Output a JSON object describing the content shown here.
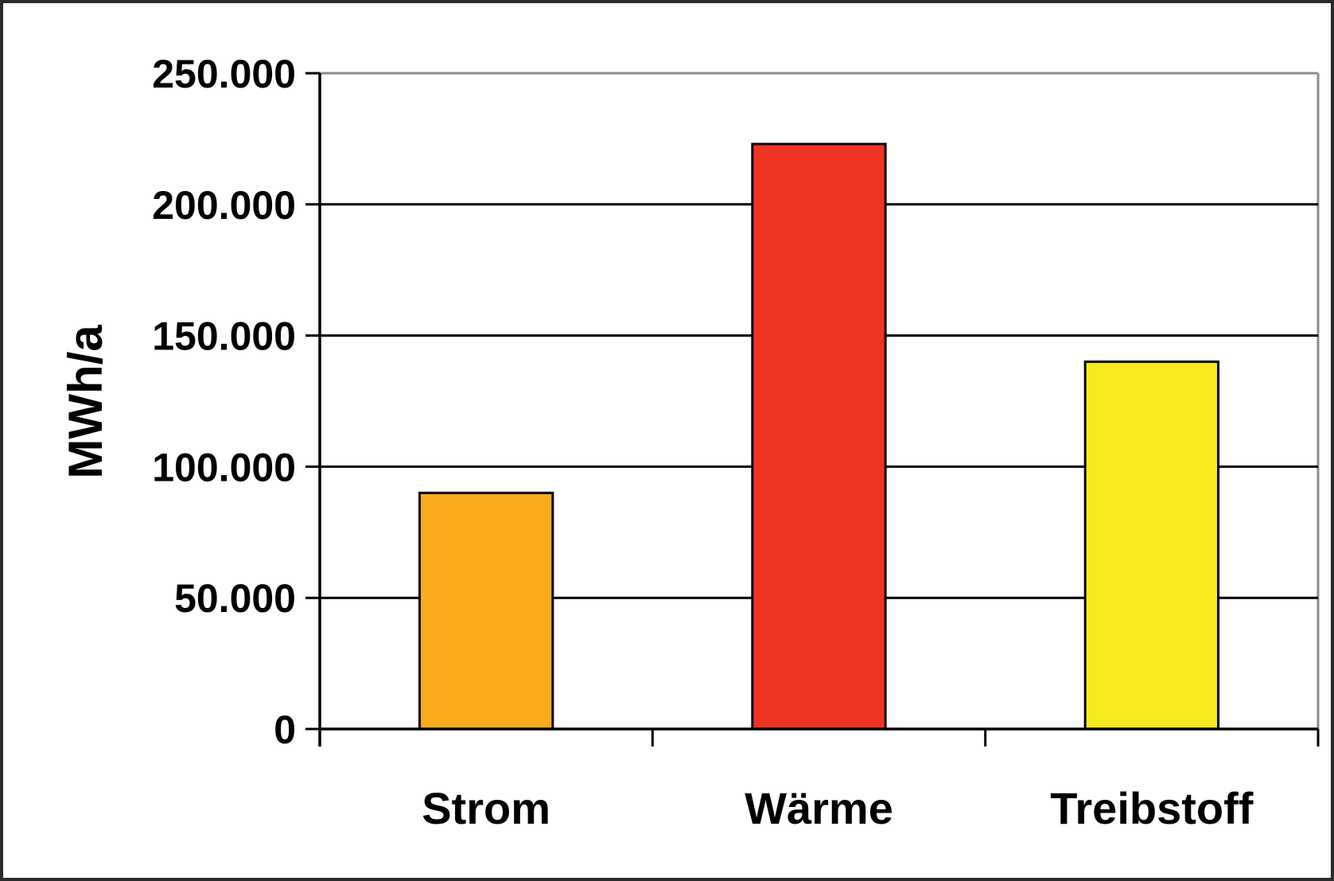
{
  "chart_data": {
    "type": "bar",
    "categories": [
      "Strom",
      "Wärme",
      "Treibstoff"
    ],
    "values": [
      90000,
      223000,
      140000
    ],
    "colors": [
      "#fbaa1e",
      "#ee3524",
      "#f7eb1e"
    ],
    "ylabel": "MWh/a",
    "xlabel": "",
    "title": "",
    "ylim": [
      0,
      250000
    ],
    "yticks": [
      0,
      50000,
      100000,
      150000,
      200000,
      250000
    ],
    "ytick_labels": [
      "0",
      "50.000",
      "100.000",
      "150.000",
      "200.000",
      "250.000"
    ],
    "grid": true
  }
}
